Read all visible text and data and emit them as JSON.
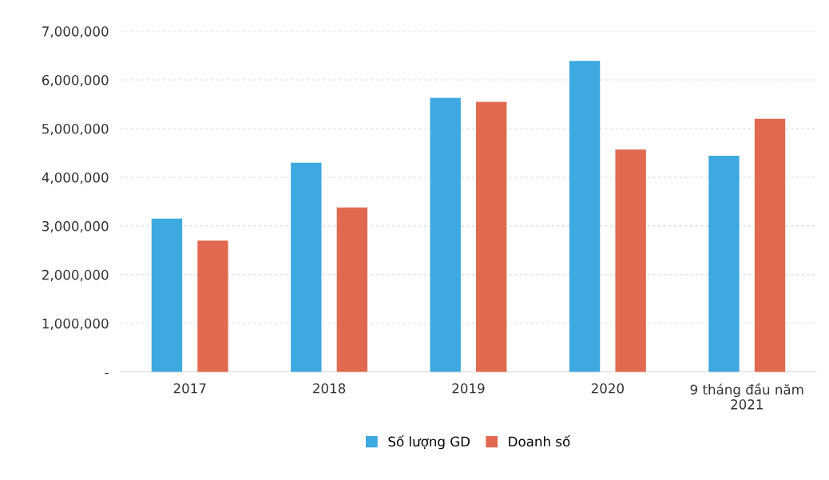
{
  "chart_data": {
    "type": "bar",
    "categories": [
      "2017",
      "2018",
      "2019",
      "2020",
      "9 tháng đầu năm\n2021"
    ],
    "series": [
      {
        "name": "Số lượng GD",
        "color": "#3ea8e0",
        "values": [
          3150000,
          4300000,
          5630000,
          6390000,
          4440000
        ]
      },
      {
        "name": "Doanh số",
        "color": "#e0694f",
        "values": [
          2700000,
          3380000,
          5550000,
          4570000,
          5200000
        ]
      }
    ],
    "ylim": [
      0,
      7000000
    ],
    "yticks": [
      {
        "value": 0,
        "label": "-"
      },
      {
        "value": 1000000,
        "label": "1,000,000"
      },
      {
        "value": 2000000,
        "label": "2,000,000"
      },
      {
        "value": 3000000,
        "label": "3,000,000"
      },
      {
        "value": 4000000,
        "label": "4,000,000"
      },
      {
        "value": 5000000,
        "label": "5,000,000"
      },
      {
        "value": 6000000,
        "label": "6,000,000"
      },
      {
        "value": 7000000,
        "label": "7,000,000"
      }
    ],
    "grid": "y",
    "legend": "bottom"
  }
}
